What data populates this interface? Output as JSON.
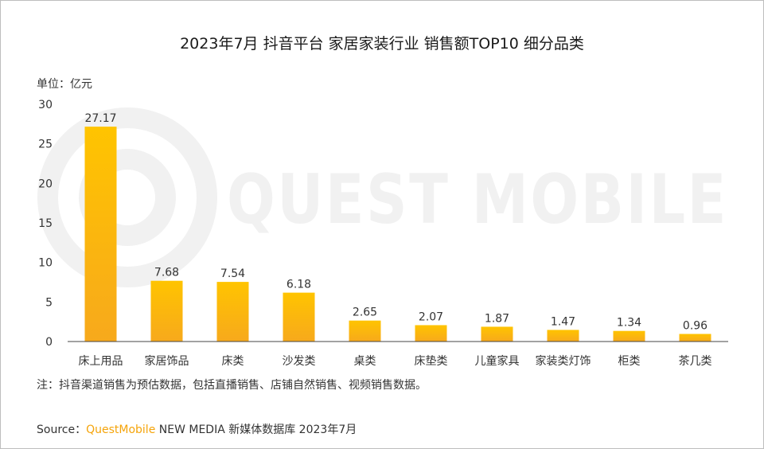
{
  "header": {
    "title": "2023年7月 抖音平台 家居家装行业 销售额TOP10 细分品类",
    "unit": "单位：亿元"
  },
  "footer": {
    "note": "注：抖音渠道销售为预估数据，包括直播销售、店铺自然销售、视频销售数据。",
    "source_prefix": "Source：",
    "source_brand": "QuestMobile",
    "source_rest": " NEW MEDIA 新媒体数据库 2023年7月"
  },
  "watermark": {
    "text": "QUEST MOBILE"
  },
  "colors": {
    "bar_top": "#ffc400",
    "bar_bottom": "#f7a91c",
    "axis": "#444444",
    "watermark": "#f1f1f1"
  },
  "chart_data": {
    "type": "bar",
    "title": "2023年7月 抖音平台 家居家装行业 销售额TOP10 细分品类",
    "ylabel": "单位：亿元",
    "ylim": [
      0,
      30
    ],
    "yticks": [
      0,
      5,
      10,
      15,
      20,
      25,
      30
    ],
    "grid": false,
    "categories": [
      "床上用品",
      "家居饰品",
      "床类",
      "沙发类",
      "桌类",
      "床垫类",
      "儿童家具",
      "家装类灯饰",
      "柜类",
      "茶几类"
    ],
    "values": [
      27.17,
      7.68,
      7.54,
      6.18,
      2.65,
      2.07,
      1.87,
      1.47,
      1.34,
      0.96
    ],
    "value_labels": [
      "27.17",
      "7.68",
      "7.54",
      "6.18",
      "2.65",
      "2.07",
      "1.87",
      "1.47",
      "1.34",
      "0.96"
    ]
  }
}
